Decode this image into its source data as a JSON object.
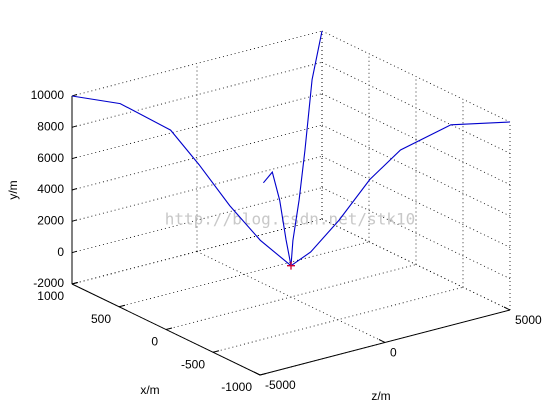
{
  "chart_data": {
    "type": "line3d",
    "xlabel": "x/m",
    "ylabel": "y/m",
    "zlabel": "z/m",
    "annotation": "http://blog.csdn.net/stk10",
    "xlim": [
      -1000,
      1000
    ],
    "ylim": [
      -2000,
      10000
    ],
    "zlim": [
      -5000,
      5000
    ],
    "xticks": [
      -1000,
      -500,
      0,
      500,
      1000
    ],
    "yticks": [
      -2000,
      0,
      2000,
      4000,
      6000,
      8000,
      10000
    ],
    "zticks": [
      -5000,
      0,
      5000
    ],
    "grid": true,
    "series": [
      {
        "color": "#0000cc",
        "x": [
          1000,
          780,
          550,
          420,
          280,
          140,
          0
        ],
        "y": [
          10000,
          9700,
          8200,
          6100,
          3600,
          1500,
          0
        ],
        "z": [
          -5000,
          -3900,
          -2750,
          -2100,
          -1400,
          -700,
          0
        ]
      },
      {
        "color": "#0000cc",
        "x": [
          -1000,
          -730,
          -500,
          -360,
          -220,
          -90,
          0
        ],
        "y": [
          10000,
          9600,
          7800,
          5800,
          3100,
          950,
          0
        ],
        "z": [
          5000,
          3650,
          2500,
          1800,
          1100,
          450,
          0
        ]
      },
      {
        "color": "#0000cc",
        "x": [
          0,
          60,
          260,
          450,
          680,
          1000
        ],
        "y": [
          0,
          1300,
          2900,
          5100,
          8500,
          10000
        ],
        "z": [
          0,
          300,
          1300,
          2250,
          3400,
          5000
        ]
      },
      {
        "color": "#0000cc",
        "x": [
          190,
          130,
          80,
          35,
          0
        ],
        "y": [
          4900,
          5700,
          4000,
          1600,
          0
        ],
        "z": [
          -390,
          -260,
          -150,
          -70,
          0
        ]
      }
    ],
    "marker": {
      "x": 0,
      "y": 0,
      "z": 0,
      "color": "#cc0033"
    }
  }
}
